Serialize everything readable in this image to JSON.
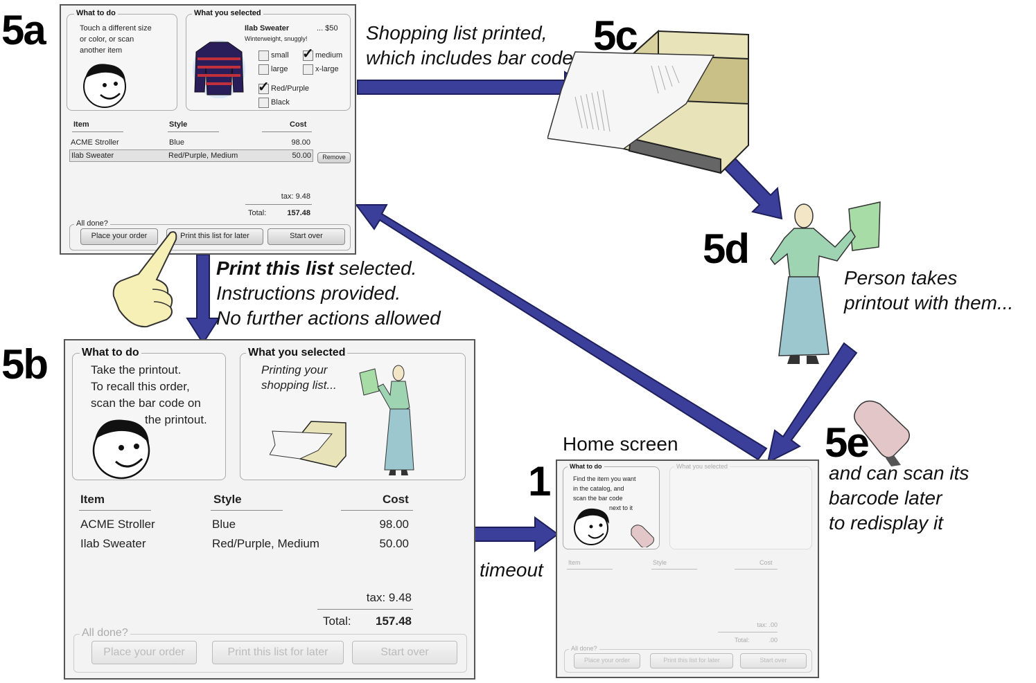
{
  "labels": {
    "step_5a": "5a",
    "step_5b": "5b",
    "step_5c": "5c",
    "step_5d": "5d",
    "step_5e": "5e",
    "step_1": "1",
    "home_screen": "Home screen"
  },
  "captions": {
    "c5c_line1": "Shopping list printed,",
    "c5c_line2": "which includes bar code",
    "print_bold": "Print this list",
    "print_rest": " selected.",
    "print_line2": "Instructions  provided.",
    "print_line3": "No further actions allowed",
    "c5d_line1": "Person takes",
    "c5d_line2": "printout with them...",
    "c5e_line1": "and can scan its",
    "c5e_line2": "barcode later",
    "c5e_line3": "to redisplay it",
    "timeout": "timeout"
  },
  "screen_5a": {
    "what_to_do": "What to do",
    "instr_1": "Touch a different size",
    "instr_2": "or color, or scan",
    "instr_3": "another item",
    "what_you_selected": "What you selected",
    "product_name": "Ilab Sweater",
    "product_price": "... $50",
    "product_desc": "Winterweight, snuggly!",
    "opt_small": "small",
    "opt_medium": "medium",
    "opt_large": "large",
    "opt_xlarge": "x-large",
    "opt_redpurple": "Red/Purple",
    "opt_black": "Black",
    "col_item": "Item",
    "col_style": "Style",
    "col_cost": "Cost",
    "rows": [
      {
        "item": "ACME Stroller",
        "style": "Blue",
        "cost": "98.00"
      },
      {
        "item": "Ilab Sweater",
        "style": "Red/Purple, Medium",
        "cost": "50.00"
      }
    ],
    "remove": "Remove",
    "tax": "tax: 9.48",
    "total_label": "Total:",
    "total_value": "157.48",
    "all_done": "All done?",
    "btn_place": "Place your order",
    "btn_print": "Print this list for later",
    "btn_start": "Start over"
  },
  "screen_5b": {
    "what_to_do": "What to do",
    "instr_1": "Take the printout.",
    "instr_2": "To recall this order,",
    "instr_3": "scan the bar code on",
    "instr_4": "the printout.",
    "what_you_selected": "What you selected",
    "printing_1": "Printing your",
    "printing_2": "shopping list...",
    "col_item": "Item",
    "col_style": "Style",
    "col_cost": "Cost",
    "rows": [
      {
        "item": "ACME Stroller",
        "style": "Blue",
        "cost": "98.00"
      },
      {
        "item": "Ilab Sweater",
        "style": "Red/Purple, Medium",
        "cost": "50.00"
      }
    ],
    "tax": "tax: 9.48",
    "total_label": "Total:",
    "total_value": "157.48",
    "all_done": "All done?",
    "btn_place": "Place your order",
    "btn_print": "Print this list for later",
    "btn_start": "Start over"
  },
  "screen_1": {
    "what_to_do": "What to do",
    "instr_1": "Find the item you want",
    "instr_2": "in the catalog, and",
    "instr_3": "scan the bar code",
    "instr_4": "next to it",
    "what_you_selected": "What you selected",
    "col_item": "Item",
    "col_style": "Style",
    "col_cost": "Cost",
    "tax": "tax:  .00",
    "total_label": "Total:",
    "total_value": ".00",
    "all_done": "All done?",
    "btn_place": "Place your order",
    "btn_print": "Print this list for later",
    "btn_start": "Start over"
  },
  "colors": {
    "arrow": "#3b3f9a",
    "arrow_edge": "#1d1f5c"
  }
}
